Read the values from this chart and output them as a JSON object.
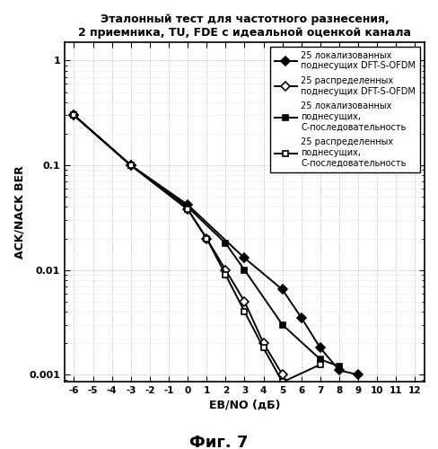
{
  "title": "Эталонный тест для частотного разнесения,\n2 приемника, TU, FDE с идеальной оценкой канала",
  "xlabel": "EB/NO (дБ)",
  "ylabel": "ACK/NACK BER",
  "figcaption": "Фиг. 7",
  "xlim": [
    -6.5,
    12.5
  ],
  "series": [
    {
      "label": "25 локализованных\nподнесущих DFT-S-OFDM",
      "marker": "D",
      "markersize": 5,
      "markerfacecolor": "#000000",
      "x": [
        -6,
        -3,
        0,
        3,
        5,
        6,
        7,
        8,
        9
      ],
      "y": [
        0.3,
        0.1,
        0.042,
        0.013,
        0.0065,
        0.0035,
        0.0018,
        0.0011,
        0.001
      ]
    },
    {
      "label": "25 распределенных\nподнесущих DFT-S-OFDM",
      "marker": "D",
      "markersize": 5,
      "markerfacecolor": "#ffffff",
      "x": [
        -6,
        -3,
        0,
        1,
        2,
        3,
        4,
        5
      ],
      "y": [
        0.3,
        0.1,
        0.038,
        0.02,
        0.01,
        0.005,
        0.002,
        0.001
      ]
    },
    {
      "label": "25 локализованных\nподнесущих,\nС-последовательность",
      "marker": "s",
      "markersize": 5,
      "markerfacecolor": "#000000",
      "x": [
        -6,
        -3,
        0,
        2,
        3,
        5,
        7,
        8
      ],
      "y": [
        0.3,
        0.1,
        0.04,
        0.018,
        0.01,
        0.003,
        0.0014,
        0.0012
      ]
    },
    {
      "label": "25 распределенных\nподнесущих,\nС-последовательность",
      "marker": "s",
      "markersize": 5,
      "markerfacecolor": "#ffffff",
      "x": [
        -6,
        -3,
        0,
        1,
        2,
        3,
        4,
        5,
        7
      ],
      "y": [
        0.3,
        0.1,
        0.038,
        0.02,
        0.009,
        0.004,
        0.0018,
        0.00085,
        0.00125
      ]
    }
  ],
  "bg_color": "#ffffff",
  "grid_major_color": "#aaaaaa",
  "grid_minor_color": "#cccccc"
}
